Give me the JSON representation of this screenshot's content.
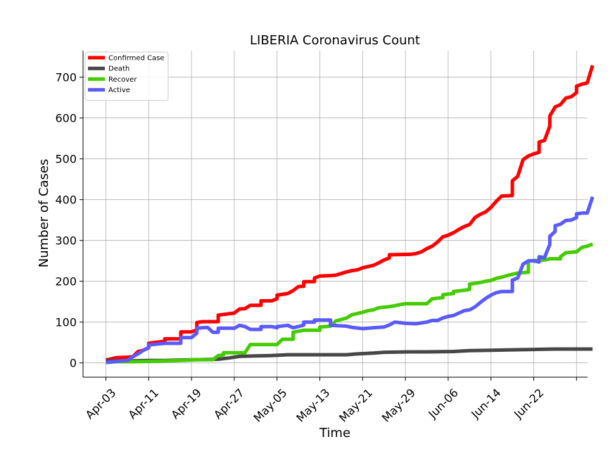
{
  "chart_data": {
    "type": "line",
    "title": "LIBERIA Coronavirus Count",
    "xlabel": "Time",
    "ylabel": "Number of Cases",
    "x_start": "2020-04-03",
    "x_ticks": [
      "Apr-03",
      "Apr-11",
      "Apr-19",
      "Apr-27",
      "May-05",
      "May-13",
      "May-21",
      "May-29",
      "Jun-06",
      "Jun-14",
      "Jun-22"
    ],
    "ylim": [
      -35,
      765
    ],
    "y_ticks": [
      0,
      100,
      200,
      300,
      400,
      500,
      600,
      700
    ],
    "grid": true,
    "legend": "top-left",
    "series": [
      {
        "name": "Confirmed Case",
        "color": "#ff0000",
        "points": [
          [
            0,
            7
          ],
          [
            1,
            10
          ],
          [
            2,
            13
          ],
          [
            4,
            14
          ],
          [
            5,
            15
          ],
          [
            6,
            28
          ],
          [
            7,
            31
          ],
          [
            8,
            37
          ],
          [
            8,
            48
          ],
          [
            9,
            50
          ],
          [
            11,
            53
          ],
          [
            11,
            59
          ],
          [
            14,
            59
          ],
          [
            14,
            76
          ],
          [
            16,
            76
          ],
          [
            17,
            81
          ],
          [
            17,
            99
          ],
          [
            18,
            101
          ],
          [
            21,
            101
          ],
          [
            21,
            117
          ],
          [
            24,
            122
          ],
          [
            25,
            132
          ],
          [
            26,
            133
          ],
          [
            27,
            141
          ],
          [
            29,
            141
          ],
          [
            29,
            152
          ],
          [
            31,
            152
          ],
          [
            32,
            157
          ],
          [
            32,
            166
          ],
          [
            34,
            170
          ],
          [
            35,
            177
          ],
          [
            36,
            187
          ],
          [
            37,
            188
          ],
          [
            37,
            199
          ],
          [
            39,
            199
          ],
          [
            39,
            208
          ],
          [
            40,
            213
          ],
          [
            42,
            214
          ],
          [
            43,
            215
          ],
          [
            44,
            219
          ],
          [
            45,
            223
          ],
          [
            46,
            226
          ],
          [
            47,
            228
          ],
          [
            48,
            233
          ],
          [
            49,
            236
          ],
          [
            50,
            239
          ],
          [
            51,
            245
          ],
          [
            52,
            252
          ],
          [
            53,
            257
          ],
          [
            53,
            265
          ],
          [
            57,
            266
          ],
          [
            58,
            268
          ],
          [
            59,
            272
          ],
          [
            60,
            280
          ],
          [
            61,
            286
          ],
          [
            62,
            296
          ],
          [
            63,
            309
          ],
          [
            64,
            313
          ],
          [
            65,
            319
          ],
          [
            66,
            327
          ],
          [
            67,
            334
          ],
          [
            68,
            339
          ],
          [
            69,
            356
          ],
          [
            70,
            364
          ],
          [
            71,
            370
          ],
          [
            72,
            381
          ],
          [
            73,
            396
          ],
          [
            74,
            409
          ],
          [
            76,
            410
          ],
          [
            76,
            446
          ],
          [
            77,
            457
          ],
          [
            78,
            498
          ],
          [
            79,
            507
          ],
          [
            80,
            512
          ],
          [
            81,
            516
          ],
          [
            81,
            541
          ],
          [
            82,
            545
          ],
          [
            83,
            580
          ],
          [
            83,
            605
          ],
          [
            84,
            627
          ],
          [
            85,
            633
          ],
          [
            86,
            649
          ],
          [
            87,
            652
          ],
          [
            88,
            662
          ],
          [
            88,
            678
          ],
          [
            89,
            683
          ],
          [
            90,
            686
          ],
          [
            91,
            729
          ]
        ]
      },
      {
        "name": "Death",
        "color": "#474747",
        "points": [
          [
            0,
            5
          ],
          [
            5,
            5
          ],
          [
            8,
            6
          ],
          [
            11,
            6
          ],
          [
            14,
            7
          ],
          [
            17,
            8
          ],
          [
            21,
            9
          ],
          [
            23,
            12
          ],
          [
            25,
            16
          ],
          [
            28,
            17
          ],
          [
            31,
            18
          ],
          [
            34,
            20
          ],
          [
            45,
            20
          ],
          [
            47,
            22
          ],
          [
            50,
            24
          ],
          [
            52,
            26
          ],
          [
            57,
            27
          ],
          [
            60,
            27
          ],
          [
            65,
            28
          ],
          [
            68,
            30
          ],
          [
            72,
            31
          ],
          [
            76,
            32
          ],
          [
            80,
            33
          ],
          [
            84,
            34
          ],
          [
            91,
            34
          ]
        ]
      },
      {
        "name": "Recover",
        "color": "#44cc00",
        "points": [
          [
            0,
            1
          ],
          [
            2,
            3
          ],
          [
            5,
            3
          ],
          [
            9,
            4
          ],
          [
            14,
            6
          ],
          [
            17,
            8
          ],
          [
            20,
            8
          ],
          [
            21,
            18
          ],
          [
            22,
            20
          ],
          [
            22,
            25
          ],
          [
            26,
            25
          ],
          [
            27,
            45
          ],
          [
            32,
            45
          ],
          [
            33,
            58
          ],
          [
            35,
            58
          ],
          [
            35,
            75
          ],
          [
            37,
            80
          ],
          [
            40,
            80
          ],
          [
            40,
            88
          ],
          [
            42,
            90
          ],
          [
            43,
            103
          ],
          [
            45,
            110
          ],
          [
            46,
            118
          ],
          [
            47,
            121
          ],
          [
            48,
            124
          ],
          [
            49,
            128
          ],
          [
            50,
            130
          ],
          [
            51,
            135
          ],
          [
            53,
            138
          ],
          [
            54,
            140
          ],
          [
            55,
            143
          ],
          [
            56,
            145
          ],
          [
            60,
            145
          ],
          [
            61,
            157
          ],
          [
            63,
            160
          ],
          [
            63,
            167
          ],
          [
            65,
            170
          ],
          [
            65,
            175
          ],
          [
            67,
            178
          ],
          [
            68,
            180
          ],
          [
            68,
            193
          ],
          [
            69,
            195
          ],
          [
            70,
            197
          ],
          [
            71,
            200
          ],
          [
            72,
            202
          ],
          [
            73,
            207
          ],
          [
            74,
            210
          ],
          [
            75,
            214
          ],
          [
            76,
            217
          ],
          [
            77,
            220
          ],
          [
            79,
            222
          ],
          [
            79,
            250
          ],
          [
            82,
            252
          ],
          [
            83,
            255
          ],
          [
            85,
            255
          ],
          [
            85,
            260
          ],
          [
            86,
            270
          ],
          [
            88,
            272
          ],
          [
            89,
            283
          ],
          [
            90,
            286
          ],
          [
            91,
            291
          ]
        ]
      },
      {
        "name": "Active",
        "color": "#5a5aff",
        "points": [
          [
            0,
            1
          ],
          [
            2,
            4
          ],
          [
            4,
            6
          ],
          [
            5,
            15
          ],
          [
            6,
            22
          ],
          [
            7,
            31
          ],
          [
            8,
            37
          ],
          [
            8,
            44
          ],
          [
            11,
            48
          ],
          [
            14,
            48
          ],
          [
            14,
            62
          ],
          [
            16,
            62
          ],
          [
            17,
            73
          ],
          [
            17,
            85
          ],
          [
            19,
            87
          ],
          [
            20,
            75
          ],
          [
            21,
            75
          ],
          [
            21,
            85
          ],
          [
            24,
            85
          ],
          [
            25,
            92
          ],
          [
            26,
            89
          ],
          [
            27,
            82
          ],
          [
            29,
            82
          ],
          [
            29,
            89
          ],
          [
            31,
            89
          ],
          [
            32,
            86
          ],
          [
            32,
            89
          ],
          [
            34,
            92
          ],
          [
            35,
            86
          ],
          [
            36,
            89
          ],
          [
            37,
            93
          ],
          [
            37,
            100
          ],
          [
            39,
            100
          ],
          [
            39,
            105
          ],
          [
            42,
            105
          ],
          [
            42,
            92
          ],
          [
            45,
            90
          ],
          [
            46,
            87
          ],
          [
            48,
            84
          ],
          [
            50,
            86
          ],
          [
            51,
            87
          ],
          [
            52,
            88
          ],
          [
            53,
            93
          ],
          [
            54,
            100
          ],
          [
            56,
            97
          ],
          [
            58,
            96
          ],
          [
            60,
            100
          ],
          [
            61,
            104
          ],
          [
            62,
            104
          ],
          [
            63,
            110
          ],
          [
            64,
            114
          ],
          [
            65,
            116
          ],
          [
            66,
            122
          ],
          [
            67,
            128
          ],
          [
            68,
            130
          ],
          [
            69,
            137
          ],
          [
            70,
            148
          ],
          [
            71,
            158
          ],
          [
            72,
            166
          ],
          [
            73,
            172
          ],
          [
            74,
            175
          ],
          [
            76,
            175
          ],
          [
            76,
            203
          ],
          [
            77,
            208
          ],
          [
            78,
            242
          ],
          [
            79,
            250
          ],
          [
            80,
            250
          ],
          [
            81,
            247
          ],
          [
            81,
            260
          ],
          [
            82,
            258
          ],
          [
            83,
            290
          ],
          [
            83,
            310
          ],
          [
            84,
            322
          ],
          [
            84,
            336
          ],
          [
            85,
            340
          ],
          [
            86,
            349
          ],
          [
            87,
            350
          ],
          [
            88,
            356
          ],
          [
            88,
            365
          ],
          [
            89,
            367
          ],
          [
            90,
            367
          ],
          [
            91,
            407
          ]
        ]
      }
    ]
  }
}
